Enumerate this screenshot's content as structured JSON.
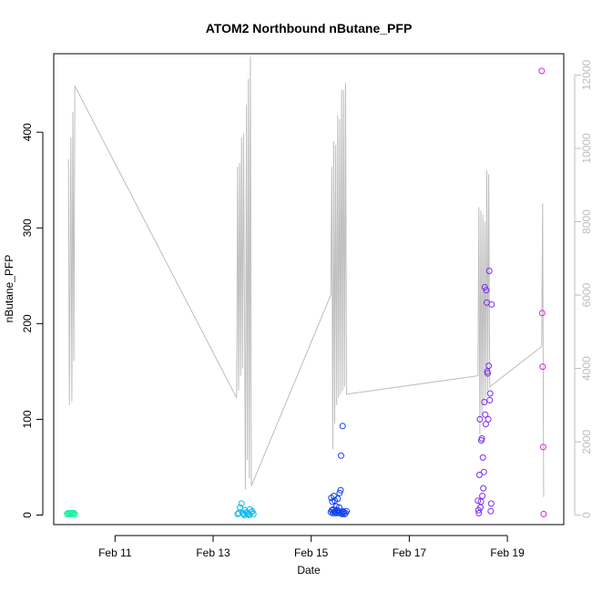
{
  "chart_data": {
    "type": "scatter",
    "title": "ATOM2 Northbound nButane_PFP",
    "xlabel": "Date",
    "ylabel": "nButane_PFP",
    "x_ticks": [
      "Feb 11",
      "Feb 13",
      "Feb 15",
      "Feb 17",
      "Feb 19"
    ],
    "x_tick_days": [
      11,
      13,
      15,
      17,
      19
    ],
    "xlim_days": [
      9.75,
      20.15
    ],
    "ylim": [
      -10,
      482
    ],
    "y_ticks": [
      0,
      100,
      200,
      300,
      400
    ],
    "right_axis": {
      "ylim": [
        -256,
        12580
      ],
      "ticks": [
        0,
        2000,
        4000,
        6000,
        8000,
        10000,
        12000
      ],
      "color": "#bdbdbd"
    },
    "grid": false,
    "line_series": {
      "axis": "right",
      "color": "#bdbdbd",
      "points": [
        [
          10.05,
          9700
        ],
        [
          10.07,
          3000
        ],
        [
          10.1,
          10300
        ],
        [
          10.12,
          3100
        ],
        [
          10.14,
          11000
        ],
        [
          10.16,
          4200
        ],
        [
          10.18,
          11700
        ],
        [
          13.48,
          3200
        ],
        [
          13.5,
          9500
        ],
        [
          13.52,
          3400
        ],
        [
          13.54,
          9600
        ],
        [
          13.56,
          3800
        ],
        [
          13.58,
          10300
        ],
        [
          13.6,
          4000
        ],
        [
          13.62,
          10400
        ],
        [
          13.66,
          700
        ],
        [
          13.68,
          11200
        ],
        [
          13.7,
          1500
        ],
        [
          13.72,
          11900
        ],
        [
          13.74,
          1000
        ],
        [
          13.76,
          12500
        ],
        [
          13.78,
          800
        ],
        [
          15.4,
          6000
        ],
        [
          15.42,
          9500
        ],
        [
          15.44,
          1800
        ],
        [
          15.46,
          10200
        ],
        [
          15.48,
          2500
        ],
        [
          15.5,
          10100
        ],
        [
          15.52,
          3000
        ],
        [
          15.54,
          10900
        ],
        [
          15.56,
          3200
        ],
        [
          15.58,
          10800
        ],
        [
          15.6,
          3300
        ],
        [
          15.62,
          11600
        ],
        [
          15.64,
          3400
        ],
        [
          15.66,
          11600
        ],
        [
          15.68,
          3500
        ],
        [
          15.7,
          11800
        ],
        [
          15.72,
          3300
        ],
        [
          18.4,
          3800
        ],
        [
          18.42,
          8400
        ],
        [
          18.44,
          2200
        ],
        [
          18.46,
          8300
        ],
        [
          18.48,
          2700
        ],
        [
          18.5,
          8200
        ],
        [
          18.52,
          3000
        ],
        [
          18.54,
          8000
        ],
        [
          18.56,
          3200
        ],
        [
          18.58,
          9400
        ],
        [
          18.6,
          3400
        ],
        [
          18.62,
          9300
        ],
        [
          18.64,
          3500
        ],
        [
          19.7,
          4600
        ],
        [
          19.72,
          8500
        ],
        [
          19.74,
          500
        ]
      ]
    },
    "series": [
      {
        "color": "#22f0a0",
        "points": [
          [
            10.02,
            1
          ],
          [
            10.04,
            2
          ],
          [
            10.06,
            1
          ],
          [
            10.08,
            2
          ],
          [
            10.1,
            1
          ],
          [
            10.12,
            2
          ],
          [
            10.14,
            1
          ],
          [
            10.16,
            2
          ],
          [
            10.18,
            1
          ],
          [
            10.05,
            2
          ],
          [
            10.11,
            1
          ],
          [
            10.15,
            2
          ]
        ]
      },
      {
        "color": "#10b8f0",
        "points": [
          [
            13.5,
            1
          ],
          [
            13.52,
            2
          ],
          [
            13.55,
            8
          ],
          [
            13.58,
            12
          ],
          [
            13.6,
            2
          ],
          [
            13.62,
            1
          ],
          [
            13.65,
            5
          ],
          [
            13.68,
            3
          ],
          [
            13.7,
            2
          ],
          [
            13.72,
            1
          ],
          [
            13.75,
            6
          ],
          [
            13.78,
            3
          ],
          [
            13.8,
            4
          ],
          [
            13.82,
            1
          ],
          [
            13.64,
            0
          ],
          [
            13.74,
            0
          ]
        ]
      },
      {
        "color": "#1040f0",
        "points": [
          [
            15.4,
            3
          ],
          [
            15.41,
            18
          ],
          [
            15.42,
            5
          ],
          [
            15.43,
            14
          ],
          [
            15.44,
            2
          ],
          [
            15.45,
            6
          ],
          [
            15.46,
            20
          ],
          [
            15.47,
            3
          ],
          [
            15.48,
            15
          ],
          [
            15.49,
            4
          ],
          [
            15.5,
            2
          ],
          [
            15.51,
            9
          ],
          [
            15.52,
            3
          ],
          [
            15.53,
            5
          ],
          [
            15.54,
            17
          ],
          [
            15.55,
            2
          ],
          [
            15.56,
            4
          ],
          [
            15.57,
            8
          ],
          [
            15.58,
            23
          ],
          [
            15.59,
            3
          ],
          [
            15.6,
            26
          ],
          [
            15.61,
            62
          ],
          [
            15.62,
            2
          ],
          [
            15.63,
            1
          ],
          [
            15.64,
            93
          ],
          [
            15.65,
            4
          ],
          [
            15.66,
            3
          ],
          [
            15.68,
            1
          ],
          [
            15.7,
            2
          ],
          [
            15.72,
            4
          ]
        ]
      },
      {
        "color": "#7b2cf0",
        "points": [
          [
            18.4,
            15
          ],
          [
            18.41,
            5
          ],
          [
            18.42,
            2
          ],
          [
            18.43,
            42
          ],
          [
            18.44,
            100
          ],
          [
            18.45,
            8
          ],
          [
            18.46,
            14
          ],
          [
            18.47,
            78
          ],
          [
            18.48,
            80
          ],
          [
            18.49,
            20
          ],
          [
            18.5,
            60
          ],
          [
            18.51,
            28
          ],
          [
            18.52,
            45
          ],
          [
            18.53,
            118
          ],
          [
            18.54,
            238
          ],
          [
            18.55,
            105
          ],
          [
            18.56,
            95
          ],
          [
            18.57,
            235
          ],
          [
            18.58,
            222
          ],
          [
            18.59,
            150
          ],
          [
            18.6,
            148
          ],
          [
            18.61,
            100
          ],
          [
            18.62,
            156
          ],
          [
            18.63,
            255
          ],
          [
            18.64,
            120
          ],
          [
            18.65,
            127
          ],
          [
            18.66,
            4
          ],
          [
            18.67,
            12
          ],
          [
            18.68,
            220
          ]
        ]
      },
      {
        "color": "#e020e0",
        "points": [
          [
            19.7,
            464
          ],
          [
            19.71,
            211
          ],
          [
            19.72,
            155
          ],
          [
            19.73,
            71
          ],
          [
            19.74,
            1
          ]
        ]
      }
    ]
  }
}
